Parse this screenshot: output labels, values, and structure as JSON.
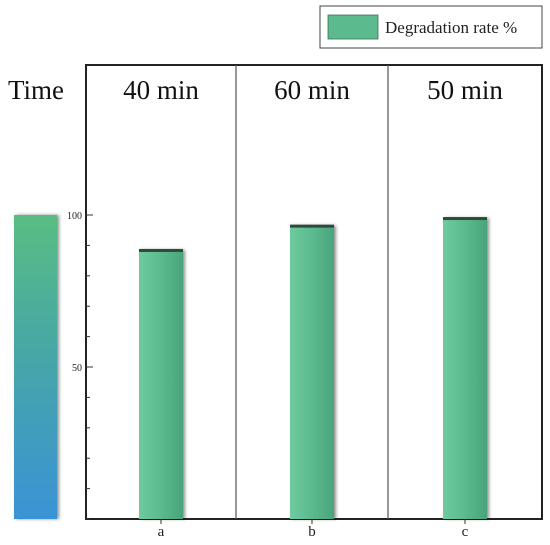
{
  "chart_data": {
    "type": "bar",
    "categories": [
      "a",
      "b",
      "c"
    ],
    "group_labels": [
      "40 min",
      "60 min",
      "50 min"
    ],
    "series": [
      {
        "name": "Degradation rate %",
        "values": [
          88.5,
          96.5,
          99
        ]
      }
    ],
    "row_label": "Time",
    "ylim": [
      0,
      100
    ],
    "yticks": [
      50,
      100
    ],
    "legend": "top-right",
    "colors": {
      "bar": "#5bbb8e",
      "bar_edge": "#3d6f57",
      "gradient_top": "#59bd83",
      "gradient_bottom": "#3a93d6"
    }
  }
}
